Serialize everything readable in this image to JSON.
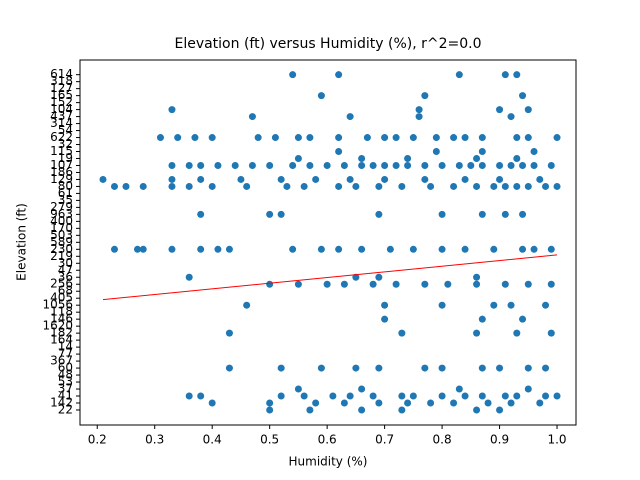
{
  "chart_data": {
    "type": "scatter",
    "title": "Elevation (ft) versus Humidity (%), r^2=0.0",
    "x_label": "Humidity (%)",
    "y_label": "Elevation (ft)",
    "color": "#1f77b4",
    "fit_color": "#ff0000",
    "xlim": [
      0.17,
      1.033
    ],
    "xticks": [
      0.2,
      0.3,
      0.4,
      0.5,
      0.6,
      0.7,
      0.8,
      0.9,
      {
        "value": 1,
        "label": "1.0"
      }
    ],
    "ylim": [
      -2.15,
      50.1
    ],
    "ycategories": [
      22,
      142,
      41,
      37,
      53,
      48,
      60,
      367,
      77,
      14,
      164,
      182,
      1620,
      146,
      118,
      1056,
      405,
      68,
      256,
      36,
      47,
      30,
      219,
      230,
      589,
      503,
      170,
      400,
      963,
      279,
      35,
      61,
      80,
      129,
      186,
      107,
      19,
      115,
      32,
      622,
      54,
      314,
      437,
      104,
      152,
      165,
      127,
      318,
      614
    ],
    "rows": [
      {
        "y": 107,
        "x": [
          0.33,
          0.36,
          0.38,
          0.41,
          0.44,
          0.47,
          0.5,
          0.54,
          0.57,
          0.6,
          0.63,
          0.66,
          0.68,
          0.7,
          0.72,
          0.74,
          0.77,
          0.8,
          0.83,
          0.85,
          0.87,
          0.9,
          0.92,
          0.94,
          0.96,
          0.99
        ]
      },
      {
        "y": 129,
        "x": [
          0.21,
          0.33,
          0.38,
          0.45,
          0.52,
          0.58,
          0.64,
          0.7,
          0.77,
          0.84,
          0.9,
          0.97
        ]
      },
      {
        "y": 80,
        "x": [
          0.23,
          0.25,
          0.28,
          0.33,
          0.36,
          0.4,
          0.46,
          0.53,
          0.56,
          0.62,
          0.65,
          0.69,
          0.73,
          0.78,
          0.82,
          0.86,
          0.89,
          0.91,
          0.93,
          0.95,
          0.98,
          1.0
        ]
      },
      {
        "y": 622,
        "x": [
          0.31,
          0.34,
          0.37,
          0.4,
          0.48,
          0.51,
          0.55,
          0.57,
          0.62,
          0.67,
          0.7,
          0.72,
          0.75,
          0.79,
          0.82,
          0.84,
          0.87,
          0.93,
          0.95,
          1.0
        ]
      },
      {
        "y": 230,
        "x": [
          0.23,
          0.27,
          0.28,
          0.33,
          0.38,
          0.41,
          0.43,
          0.54,
          0.59,
          0.62,
          0.66,
          0.71,
          0.75,
          0.8,
          0.84,
          0.89,
          0.94,
          0.96,
          0.99
        ]
      },
      {
        "y": 256,
        "x": [
          0.5,
          0.55,
          0.6,
          0.63,
          0.68,
          0.72,
          0.77,
          0.81,
          0.86,
          0.91,
          0.95,
          0.99
        ]
      },
      {
        "y": 41,
        "x": [
          0.36,
          0.38,
          0.52,
          0.56,
          0.61,
          0.64,
          0.68,
          0.73,
          0.75,
          0.8,
          0.84,
          0.87,
          0.91,
          0.93,
          0.98,
          1.0
        ]
      },
      {
        "y": 142,
        "x": [
          0.4,
          0.5,
          0.58,
          0.63,
          0.69,
          0.74,
          0.78,
          0.82,
          0.88,
          0.92,
          0.97
        ]
      },
      {
        "y": 22,
        "x": [
          0.5,
          0.57,
          0.66,
          0.73,
          0.86,
          0.9
        ]
      },
      {
        "y": 60,
        "x": [
          0.43,
          0.52,
          0.59,
          0.65,
          0.69,
          0.77,
          0.8,
          0.87,
          0.9,
          0.95,
          0.98
        ]
      },
      {
        "y": 1056,
        "x": [
          0.46,
          0.7,
          0.8,
          0.89,
          0.92,
          0.98
        ]
      },
      {
        "y": 614,
        "x": [
          0.54,
          0.62,
          0.83,
          0.91,
          0.93
        ]
      },
      {
        "y": 165,
        "x": [
          0.59,
          0.77,
          0.94
        ]
      },
      {
        "y": 104,
        "x": [
          0.33,
          0.76,
          0.9,
          0.95
        ]
      },
      {
        "y": 36,
        "x": [
          0.36,
          0.65,
          0.69,
          0.86
        ]
      },
      {
        "y": 963,
        "x": [
          0.38,
          0.5,
          0.52,
          0.69,
          0.8,
          0.87,
          0.91,
          0.94
        ]
      },
      {
        "y": 146,
        "x": [
          0.7,
          0.87,
          0.94
        ]
      },
      {
        "y": 182,
        "x": [
          0.43,
          0.73,
          0.86,
          0.93,
          0.99
        ]
      },
      {
        "y": 19,
        "x": [
          0.55,
          0.66,
          0.74,
          0.86,
          0.93
        ]
      },
      {
        "y": 115,
        "x": [
          0.62,
          0.79,
          0.87,
          0.96
        ]
      },
      {
        "y": 437,
        "x": [
          0.47,
          0.64,
          0.76,
          0.92
        ]
      },
      {
        "y": 37,
        "x": [
          0.55,
          0.66,
          0.83,
          0.95
        ]
      }
    ],
    "fit": {
      "x": [
        0.21,
        1.0
      ],
      "y": [
        15.8,
        22.2
      ]
    }
  }
}
